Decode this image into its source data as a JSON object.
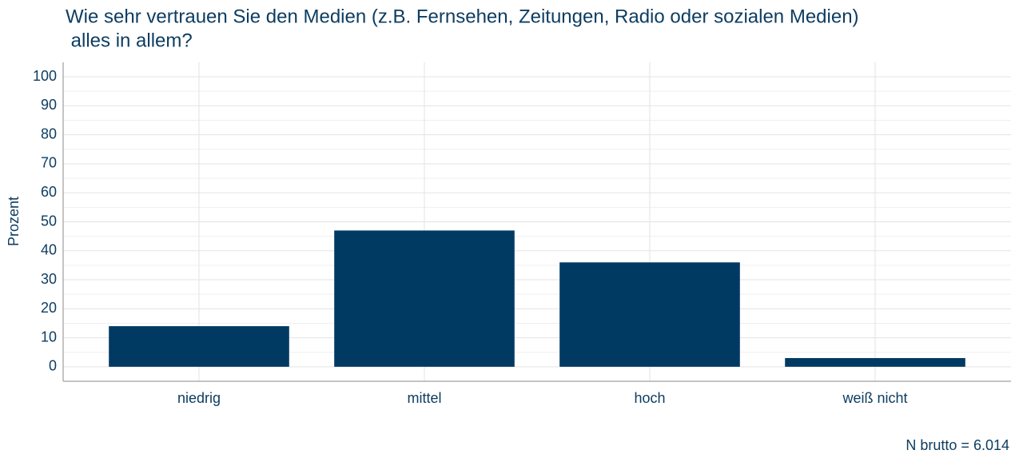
{
  "chart_data": {
    "type": "bar",
    "title": [
      "Wie sehr vertrauen Sie den Medien (z.B. Fernsehen, Zeitungen, Radio oder sozialen Medien)",
      " alles in allem?"
    ],
    "ylabel": "Prozent",
    "caption": "N brutto = 6.014",
    "categories": [
      "niedrig",
      "mittel",
      "hoch",
      "weiß nicht"
    ],
    "values": [
      14,
      47,
      36,
      3
    ],
    "color": "#003a63",
    "ylim": [
      -5,
      105
    ],
    "yticks": [
      0,
      10,
      20,
      30,
      40,
      50,
      60,
      70,
      80,
      90,
      100
    ],
    "grid": true
  }
}
